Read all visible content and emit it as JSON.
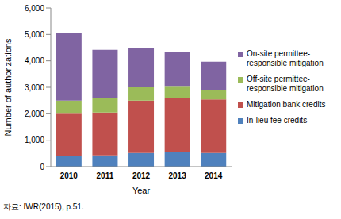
{
  "chart_data": {
    "type": "bar",
    "stacked": true,
    "grid": false,
    "legend": "right",
    "x_label": "Year",
    "y_label": "Number of authorizations",
    "source": "자료: IWR(2015), p.51.",
    "categories": [
      "2010",
      "2011",
      "2012",
      "2013",
      "2014"
    ],
    "ylim": [
      0,
      6000
    ],
    "yticks": [
      0,
      {
        "value": 1000,
        "label": "1,000"
      },
      {
        "value": 2000,
        "label": "2,000"
      },
      {
        "value": 3000,
        "label": "3,000"
      },
      {
        "value": 4000,
        "label": "4,000"
      },
      {
        "value": 5000,
        "label": "5,000"
      },
      {
        "value": 6000,
        "label": "6,000"
      }
    ],
    "series": [
      {
        "name": "In-lieu fee credits",
        "color": "#4f81bd",
        "values": [
          400,
          430,
          520,
          560,
          520
        ]
      },
      {
        "name": "Mitigation bank credits",
        "color": "#c0504d",
        "values": [
          1600,
          1620,
          1980,
          2040,
          2020
        ]
      },
      {
        "name": "Off-site permittee-responsible mitigation",
        "color": "#9bbb59",
        "values": [
          500,
          530,
          500,
          420,
          360
        ]
      },
      {
        "name": "On-site permittee-responsible mitigation",
        "color": "#8064a2",
        "values": [
          2550,
          1840,
          1500,
          1320,
          1070
        ]
      }
    ]
  }
}
